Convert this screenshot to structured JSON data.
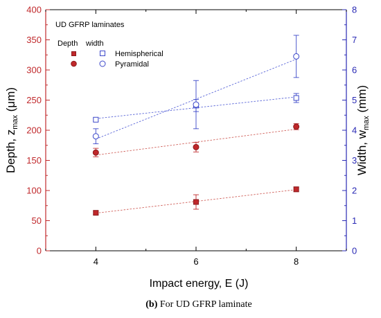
{
  "caption": {
    "label": "(b)",
    "text": " For UD GFRP laminate"
  },
  "chart_data": {
    "type": "scatter",
    "annotation": "UD GFRP laminates",
    "x": [
      4,
      6,
      8
    ],
    "xlim": [
      3,
      9
    ],
    "xticks": [
      4,
      6,
      8
    ],
    "xlabel": "Impact energy, E (J)",
    "ylabel_left": {
      "base": "Depth, z",
      "sub": "max",
      "unit": " (μm)"
    },
    "ylim_left": [
      0,
      400
    ],
    "yticks_left": [
      0,
      50,
      100,
      150,
      200,
      250,
      300,
      350,
      400
    ],
    "ylabel_right": {
      "base": "Width, w",
      "sub": "max",
      "unit": " (mm)"
    },
    "ylim_right": [
      0,
      8
    ],
    "yticks_right": [
      0,
      1,
      2,
      3,
      4,
      5,
      6,
      7,
      8
    ],
    "grid": false,
    "legend": {
      "placement": "top-left",
      "col_depth": "Depth",
      "col_width": "width",
      "rows": [
        "Hemispherical",
        "Pyramidal"
      ]
    },
    "series": [
      {
        "name": "Hemispherical",
        "quantity": "depth",
        "axis": "left",
        "marker": "filled-square",
        "color": "#c0282b",
        "values": [
          63,
          81,
          102
        ],
        "errors": [
          3,
          12,
          4
        ]
      },
      {
        "name": "Pyramidal",
        "quantity": "depth",
        "axis": "left",
        "marker": "filled-circle",
        "color": "#c0282b",
        "values": [
          163,
          172,
          206
        ],
        "errors": [
          7,
          8,
          5
        ]
      },
      {
        "name": "Hemispherical",
        "quantity": "width",
        "axis": "right",
        "marker": "open-square",
        "color": "#3b47c9",
        "values": [
          4.35,
          4.82,
          5.07
        ],
        "errors": [
          0.05,
          0.2,
          0.15
        ]
      },
      {
        "name": "Pyramidal",
        "quantity": "width",
        "axis": "right",
        "marker": "open-circle",
        "color": "#3b47c9",
        "values": [
          3.8,
          4.85,
          6.45
        ],
        "errors": [
          0.25,
          0.8,
          0.7
        ]
      }
    ],
    "colors": {
      "left_axis": "#c0282b",
      "right_axis": "#2828b4",
      "fit_left": "#d0605a",
      "fit_right": "#5a66d8"
    }
  }
}
